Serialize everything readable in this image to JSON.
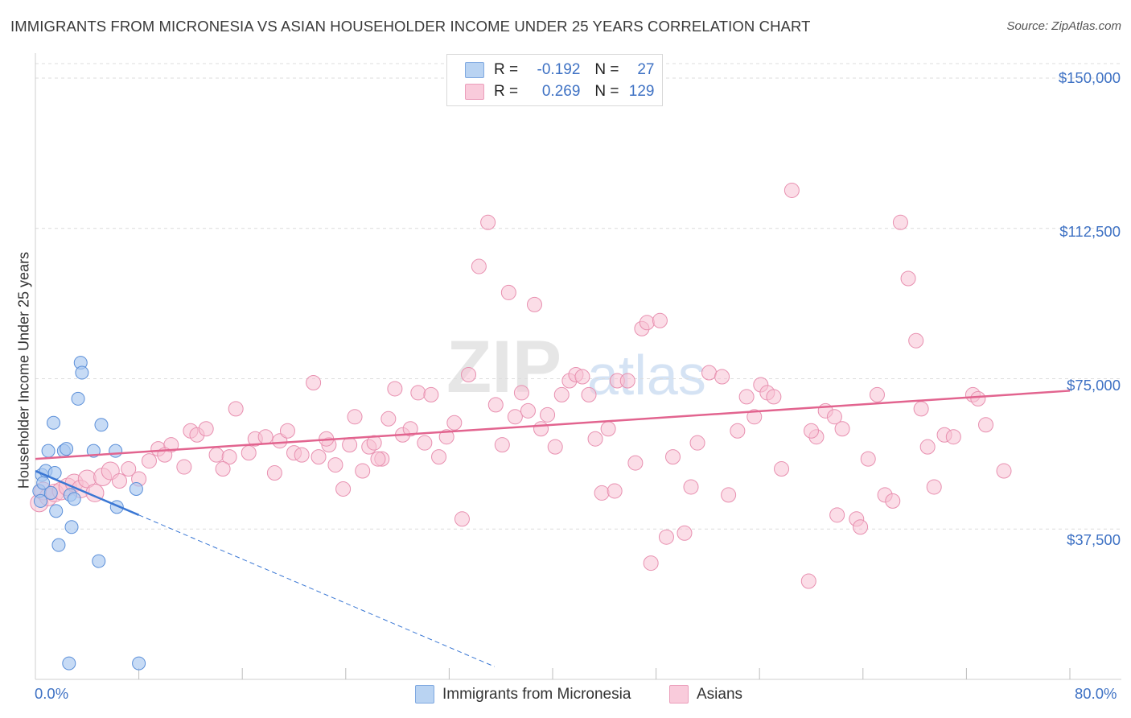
{
  "title": "IMMIGRANTS FROM MICRONESIA VS ASIAN HOUSEHOLDER INCOME UNDER 25 YEARS CORRELATION CHART",
  "source": "Source: ZipAtlas.com",
  "watermark": {
    "zip": "ZIP",
    "atlas": "atlas"
  },
  "legend": {
    "series1": {
      "r_label": "R =",
      "r_value": "-0.192",
      "n_label": "N =",
      "n_value": "27"
    },
    "series2": {
      "r_label": "R =",
      "r_value": "0.269",
      "n_label": "N =",
      "n_value": "129"
    }
  },
  "bottom_legend": {
    "series1": "Immigrants from Micronesia",
    "series2": "Asians"
  },
  "colors": {
    "series1_fill": "#a9c8ef",
    "series1_stroke": "#5b8fd9",
    "series1_line": "#3a77d4",
    "series2_fill": "#f7c1d3",
    "series2_stroke": "#e890b0",
    "series2_line": "#e2648f",
    "tick_text": "#3f72c4"
  },
  "chart_data": {
    "type": "scatter",
    "title": "IMMIGRANTS FROM MICRONESIA VS ASIAN HOUSEHOLDER INCOME UNDER 25 YEARS CORRELATION CHART",
    "xlabel": "",
    "ylabel": "Householder Income Under 25 years",
    "xlim": [
      0,
      80
    ],
    "ylim": [
      0,
      150000
    ],
    "x_tick_labels": [
      "0.0%",
      "80.0%"
    ],
    "y_ticks": [
      {
        "value": 150000,
        "label": "$150,000"
      },
      {
        "value": 112500,
        "label": "$112,500"
      },
      {
        "value": 75000,
        "label": "$75,000"
      },
      {
        "value": 37500,
        "label": "$37,500"
      }
    ],
    "grid": true,
    "legend_position": "top-center",
    "series": [
      {
        "name": "Immigrants from Micronesia",
        "r": -0.192,
        "n": 27,
        "trend": {
          "x0": 0.0,
          "y0": 52000,
          "x1": 8.0,
          "y1": 41000,
          "dashed_to_x": 35.5
        },
        "points": [
          [
            0.3,
            47000
          ],
          [
            0.5,
            51000
          ],
          [
            0.6,
            49000
          ],
          [
            0.8,
            52000
          ],
          [
            1.0,
            57000
          ],
          [
            1.2,
            46500
          ],
          [
            1.4,
            64000
          ],
          [
            1.5,
            51500
          ],
          [
            1.6,
            42000
          ],
          [
            1.8,
            33500
          ],
          [
            2.2,
            57000
          ],
          [
            2.4,
            57500
          ],
          [
            2.8,
            38000
          ],
          [
            2.7,
            46000
          ],
          [
            3.0,
            45000
          ],
          [
            3.3,
            70000
          ],
          [
            3.5,
            79000
          ],
          [
            3.6,
            76500
          ],
          [
            4.5,
            57000
          ],
          [
            5.1,
            63500
          ],
          [
            6.2,
            57000
          ],
          [
            6.3,
            43000
          ],
          [
            7.8,
            47500
          ],
          [
            4.9,
            29500
          ],
          [
            2.6,
            4000
          ],
          [
            8.0,
            4000
          ],
          [
            0.4,
            44500
          ]
        ]
      },
      {
        "name": "Asians",
        "r": 0.269,
        "n": 129,
        "trend": {
          "x0": 0.0,
          "y0": 55000,
          "x1": 80.0,
          "y1": 72000
        },
        "points": [
          [
            0.3,
            44000
          ],
          [
            0.6,
            47000
          ],
          [
            1.0,
            45500
          ],
          [
            1.5,
            46500
          ],
          [
            2.0,
            47000
          ],
          [
            2.5,
            48000
          ],
          [
            3.0,
            49000
          ],
          [
            3.5,
            47500
          ],
          [
            4.0,
            50000
          ],
          [
            4.6,
            46500
          ],
          [
            5.2,
            50500
          ],
          [
            5.8,
            52000
          ],
          [
            6.5,
            49500
          ],
          [
            7.2,
            52500
          ],
          [
            8.0,
            50000
          ],
          [
            8.8,
            54500
          ],
          [
            9.5,
            57500
          ],
          [
            10.5,
            58500
          ],
          [
            11.5,
            53000
          ],
          [
            12.0,
            62000
          ],
          [
            12.5,
            61000
          ],
          [
            13.2,
            62500
          ],
          [
            14.0,
            56000
          ],
          [
            15.0,
            55500
          ],
          [
            15.5,
            67500
          ],
          [
            16.5,
            56500
          ],
          [
            17.0,
            60000
          ],
          [
            17.8,
            60500
          ],
          [
            18.5,
            51500
          ],
          [
            18.9,
            59500
          ],
          [
            19.5,
            62000
          ],
          [
            20.0,
            56500
          ],
          [
            20.6,
            56000
          ],
          [
            21.5,
            74000
          ],
          [
            21.9,
            55500
          ],
          [
            22.7,
            58500
          ],
          [
            23.2,
            53500
          ],
          [
            23.8,
            47500
          ],
          [
            24.3,
            58500
          ],
          [
            24.7,
            65500
          ],
          [
            25.3,
            52000
          ],
          [
            25.8,
            58000
          ],
          [
            26.2,
            59000
          ],
          [
            26.8,
            55000
          ],
          [
            27.3,
            65000
          ],
          [
            27.8,
            72500
          ],
          [
            28.4,
            61000
          ],
          [
            29.0,
            62500
          ],
          [
            29.6,
            71500
          ],
          [
            30.1,
            59000
          ],
          [
            30.6,
            71000
          ],
          [
            31.2,
            55500
          ],
          [
            31.8,
            60500
          ],
          [
            32.4,
            64000
          ],
          [
            33.0,
            40000
          ],
          [
            33.5,
            76000
          ],
          [
            34.3,
            103000
          ],
          [
            35.0,
            114000
          ],
          [
            35.6,
            68500
          ],
          [
            36.1,
            58500
          ],
          [
            36.6,
            96500
          ],
          [
            37.1,
            65500
          ],
          [
            37.6,
            71500
          ],
          [
            38.1,
            67000
          ],
          [
            38.6,
            93500
          ],
          [
            39.1,
            62500
          ],
          [
            39.6,
            66000
          ],
          [
            40.2,
            58000
          ],
          [
            40.7,
            71000
          ],
          [
            41.3,
            74500
          ],
          [
            41.8,
            76000
          ],
          [
            42.3,
            75500
          ],
          [
            42.8,
            71000
          ],
          [
            43.3,
            60000
          ],
          [
            43.8,
            46500
          ],
          [
            44.3,
            62500
          ],
          [
            45.0,
            74500
          ],
          [
            45.8,
            74500
          ],
          [
            46.4,
            54000
          ],
          [
            46.9,
            87500
          ],
          [
            47.3,
            89000
          ],
          [
            47.6,
            29000
          ],
          [
            48.3,
            89500
          ],
          [
            48.8,
            35500
          ],
          [
            49.3,
            55500
          ],
          [
            50.2,
            36500
          ],
          [
            50.7,
            48000
          ],
          [
            51.2,
            59000
          ],
          [
            52.1,
            76500
          ],
          [
            53.1,
            75500
          ],
          [
            53.6,
            46000
          ],
          [
            54.3,
            62000
          ],
          [
            55.0,
            70500
          ],
          [
            55.6,
            65500
          ],
          [
            56.1,
            73500
          ],
          [
            56.6,
            71500
          ],
          [
            57.1,
            70500
          ],
          [
            57.7,
            52500
          ],
          [
            58.5,
            122000
          ],
          [
            59.8,
            24500
          ],
          [
            60.4,
            60500
          ],
          [
            61.1,
            67000
          ],
          [
            61.8,
            65500
          ],
          [
            62.4,
            62500
          ],
          [
            63.5,
            40000
          ],
          [
            63.8,
            38000
          ],
          [
            64.4,
            55000
          ],
          [
            65.1,
            71000
          ],
          [
            65.7,
            46000
          ],
          [
            66.3,
            44500
          ],
          [
            66.9,
            114000
          ],
          [
            67.5,
            100000
          ],
          [
            68.1,
            84500
          ],
          [
            69.0,
            58000
          ],
          [
            69.5,
            48000
          ],
          [
            70.3,
            61000
          ],
          [
            71.0,
            60500
          ],
          [
            72.5,
            71000
          ],
          [
            72.9,
            70000
          ],
          [
            73.5,
            63500
          ],
          [
            74.9,
            52000
          ],
          [
            62.0,
            41000
          ],
          [
            68.5,
            67500
          ],
          [
            60.0,
            62000
          ],
          [
            44.8,
            47000
          ],
          [
            26.5,
            55000
          ],
          [
            22.5,
            60000
          ],
          [
            14.5,
            52500
          ],
          [
            10.0,
            56000
          ]
        ]
      }
    ]
  }
}
